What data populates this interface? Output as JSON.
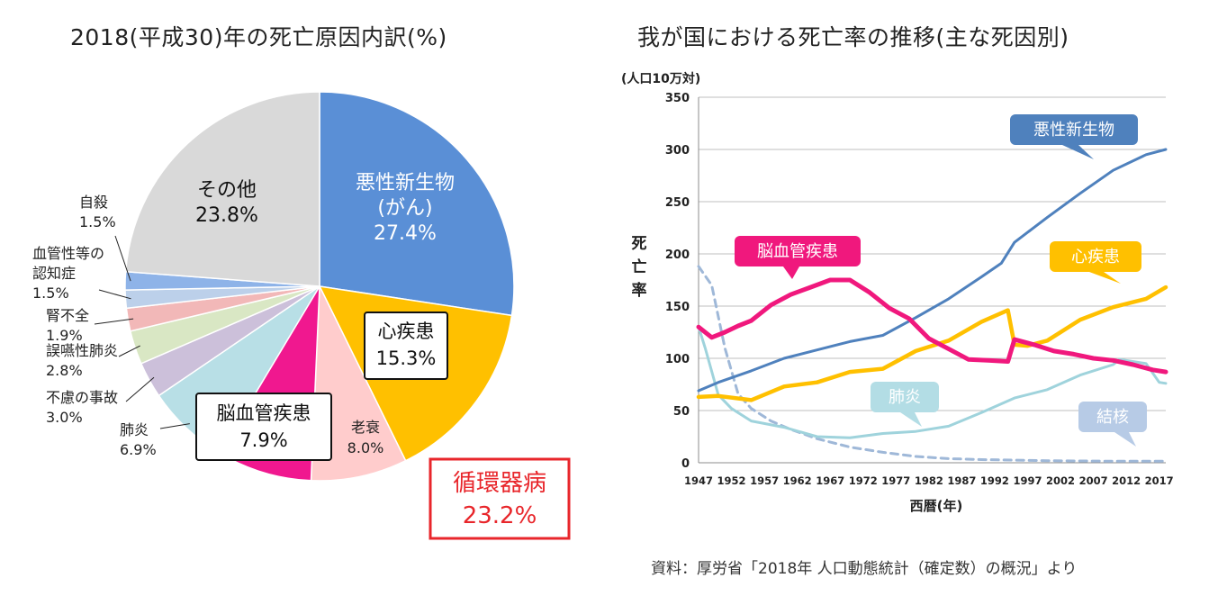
{
  "pie_title": "2018(平成30)年の死亡原因内訳(%)",
  "line_title": "我が国における死亡率の推移(主な死因別)",
  "source": "資料：厚労省「2018年 人口動態統計（確定数）の概況」より",
  "group_label": {
    "name": "循環器病",
    "value": "23.2%"
  },
  "line_y_unit": "(人口10万対)",
  "line_y_label": "死亡率",
  "line_x_label": "西暦(年)",
  "chart_data": [
    {
      "type": "pie",
      "title": "2018(平成30)年の死亡原因内訳(%)",
      "slices": [
        {
          "name": "悪性新生物",
          "sub": "(がん)",
          "value": 27.4,
          "label": "27.4%",
          "color": "#5a8fd6",
          "boxed": false
        },
        {
          "name": "心疾患",
          "value": 15.3,
          "label": "15.3%",
          "color": "#ffc000",
          "boxed": true
        },
        {
          "name": "老衰",
          "value": 8.0,
          "label": "8.0%",
          "color": "#ffcccc",
          "boxed": false
        },
        {
          "name": "脳血管疾患",
          "value": 7.9,
          "label": "7.9%",
          "color": "#f0188f",
          "boxed": true
        },
        {
          "name": "肺炎",
          "value": 6.9,
          "label": "6.9%",
          "color": "#b8dfe6",
          "boxed": false
        },
        {
          "name": "不慮の事故",
          "value": 3.0,
          "label": "3.0%",
          "color": "#ccc0da",
          "boxed": false
        },
        {
          "name": "誤嚥性肺炎",
          "value": 2.8,
          "label": "2.8%",
          "color": "#d9e7c4",
          "boxed": false
        },
        {
          "name": "腎不全",
          "value": 1.9,
          "label": "1.9%",
          "color": "#f2b8b8",
          "boxed": false
        },
        {
          "name": "血管性等の認知症",
          "value": 1.5,
          "label": "1.5%",
          "color": "#bcd0ea",
          "boxed": false
        },
        {
          "name": "自殺",
          "value": 1.5,
          "label": "1.5%",
          "color": "#8eb3e8",
          "boxed": false
        },
        {
          "name": "その他",
          "value": 23.8,
          "label": "23.8%",
          "color": "#d9d9d9",
          "boxed": false
        }
      ]
    },
    {
      "type": "line",
      "title": "我が国における死亡率の推移(主な死因別)",
      "xlabel": "西暦(年)",
      "ylabel": "死亡率",
      "y_unit": "(人口10万対)",
      "xlim": [
        1947,
        2018
      ],
      "ylim": [
        0,
        350
      ],
      "x_ticks": [
        1947,
        1952,
        1957,
        1962,
        1967,
        1972,
        1977,
        1982,
        1987,
        1992,
        1997,
        2002,
        2007,
        2012,
        2017
      ],
      "y_ticks": [
        0,
        50,
        100,
        150,
        200,
        250,
        300,
        350
      ],
      "grid": true,
      "series": [
        {
          "name": "悪性新生物",
          "color": "#4f81bd",
          "dashed": false,
          "x": [
            1947,
            1950,
            1955,
            1960,
            1965,
            1970,
            1975,
            1980,
            1985,
            1990,
            1993,
            1995,
            2000,
            2005,
            2010,
            2015,
            2018
          ],
          "y": [
            69,
            77,
            88,
            100,
            108,
            116,
            122,
            139,
            157,
            178,
            191,
            211,
            235,
            258,
            280,
            295,
            300
          ]
        },
        {
          "name": "心疾患",
          "color": "#ffc000",
          "dashed": false,
          "x": [
            1947,
            1950,
            1955,
            1960,
            1965,
            1970,
            1975,
            1980,
            1985,
            1990,
            1994,
            1995,
            1997,
            2000,
            2005,
            2010,
            2015,
            2018
          ],
          "y": [
            63,
            64,
            60,
            73,
            77,
            87,
            90,
            107,
            117,
            135,
            146,
            113,
            112,
            117,
            137,
            149,
            157,
            168
          ]
        },
        {
          "name": "脳血管疾患",
          "color": "#f0187d",
          "dashed": false,
          "x": [
            1947,
            1949,
            1951,
            1953,
            1955,
            1958,
            1961,
            1964,
            1967,
            1970,
            1973,
            1976,
            1979,
            1982,
            1985,
            1988,
            1991,
            1994,
            1995,
            1998,
            2001,
            2004,
            2007,
            2010,
            2013,
            2016,
            2018
          ],
          "y": [
            130,
            120,
            125,
            131,
            136,
            151,
            161,
            168,
            175,
            175,
            163,
            148,
            138,
            119,
            109,
            99,
            98,
            97,
            118,
            113,
            107,
            104,
            100,
            98,
            94,
            89,
            87
          ]
        },
        {
          "name": "肺炎",
          "color": "#9fd3dc",
          "dashed": false,
          "x": [
            1947,
            1948,
            1950,
            1952,
            1955,
            1960,
            1965,
            1970,
            1975,
            1980,
            1985,
            1990,
            1995,
            2000,
            2005,
            2010,
            2011,
            2015,
            2017,
            2018
          ],
          "y": [
            130,
            110,
            65,
            52,
            40,
            34,
            25,
            24,
            28,
            30,
            35,
            48,
            62,
            70,
            84,
            94,
            99,
            95,
            77,
            76
          ]
        },
        {
          "name": "結核",
          "color": "#9fb8d8",
          "dashed": true,
          "x": [
            1947,
            1949,
            1951,
            1953,
            1955,
            1958,
            1961,
            1965,
            1970,
            1975,
            1980,
            1985,
            1990,
            2000,
            2010,
            2018
          ],
          "y": [
            188,
            170,
            110,
            66,
            52,
            40,
            32,
            23,
            15,
            10,
            6,
            4,
            3,
            2,
            1.5,
            1.5
          ]
        }
      ],
      "callouts": [
        {
          "series": "悪性新生物",
          "text": "悪性新生物",
          "color": "#4f81bd"
        },
        {
          "series": "脳血管疾患",
          "text": "脳血管疾患",
          "color": "#f0187d"
        },
        {
          "series": "心疾患",
          "text": "心疾患",
          "color": "#ffc000"
        },
        {
          "series": "肺炎",
          "text": "肺炎",
          "color": "#b3dde5"
        },
        {
          "series": "結核",
          "text": "結核",
          "color": "#b7cbe6"
        }
      ]
    }
  ]
}
